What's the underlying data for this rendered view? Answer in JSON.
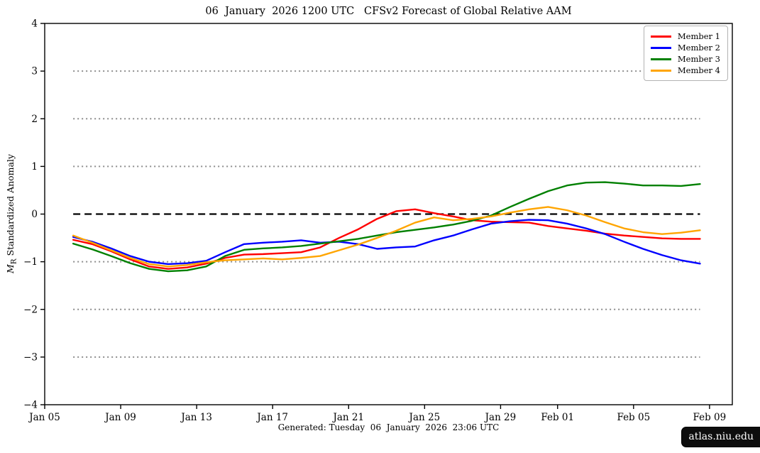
{
  "title": "06  January  2026 1200 UTC   CFSv2 Forecast of Global Relative AAM",
  "footer": "Generated: Tuesday  06  January  2026  23:06 UTC",
  "badge": "atlas.niu.edu",
  "ylabel": {
    "m": "M",
    "sub": "R",
    "rest": " Standardized Anomaly"
  },
  "chart_data": {
    "type": "line",
    "title": "06  January  2026 1200 UTC   CFSv2 Forecast of Global Relative AAM",
    "xlabel": "",
    "ylabel": "M_R Standardized Anomaly",
    "legend_position": "top-right",
    "grid": "horizontal-dotted",
    "zero_line": {
      "value": 0,
      "style": "dashed",
      "color": "#000000"
    },
    "y_axis": {
      "range": [
        -4,
        4
      ],
      "tick_values": [
        4,
        3,
        2,
        1,
        0,
        -1,
        -2,
        -3,
        -4
      ],
      "tick_labels": [
        "4",
        "3",
        "2",
        "1",
        "0",
        "−1",
        "−2",
        "−3",
        "−4"
      ],
      "gridlines": [
        3,
        2,
        1,
        -1,
        -2,
        -3
      ],
      "gridline_color": "#8c8c8c"
    },
    "x_axis": {
      "range_days": [
        5,
        41.2
      ],
      "tick_days": [
        5,
        9,
        13,
        17,
        21,
        25,
        29,
        32,
        36,
        40
      ],
      "tick_labels": [
        "Jan 05",
        "Jan 09",
        "Jan 13",
        "Jan 17",
        "Jan 21",
        "Jan 25",
        "Jan 29",
        "Feb 01",
        "Feb 05",
        "Feb 09"
      ]
    },
    "x_dates": [
      "Jan 06",
      "Jan 07",
      "Jan 08",
      "Jan 09",
      "Jan 10",
      "Jan 11",
      "Jan 12",
      "Jan 13",
      "Jan 14",
      "Jan 15",
      "Jan 16",
      "Jan 17",
      "Jan 18",
      "Jan 19",
      "Jan 20",
      "Jan 21",
      "Jan 22",
      "Jan 23",
      "Jan 24",
      "Jan 25",
      "Jan 26",
      "Jan 27",
      "Jan 28",
      "Jan 29",
      "Jan 30",
      "Jan 31",
      "Feb 01",
      "Feb 02",
      "Feb 03",
      "Feb 04",
      "Feb 05",
      "Feb 06",
      "Feb 07",
      "Feb 08"
    ],
    "x_days": [
      6.5,
      7.5,
      8.5,
      9.5,
      10.5,
      11.5,
      12.5,
      13.5,
      14.5,
      15.5,
      16.5,
      17.5,
      18.5,
      19.5,
      20.5,
      21.5,
      22.5,
      23.5,
      24.5,
      25.5,
      26.5,
      27.5,
      28.5,
      29.5,
      30.5,
      31.5,
      32.5,
      33.5,
      34.5,
      35.5,
      36.5,
      37.5,
      38.5,
      39.5
    ],
    "series": [
      {
        "name": "Member 1",
        "color": "#ff0000",
        "values": [
          -0.54,
          -0.63,
          -0.78,
          -0.95,
          -1.1,
          -1.15,
          -1.12,
          -1.04,
          -0.92,
          -0.85,
          -0.84,
          -0.82,
          -0.8,
          -0.7,
          -0.5,
          -0.32,
          -0.1,
          0.06,
          0.1,
          0.02,
          -0.05,
          -0.13,
          -0.16,
          -0.17,
          -0.18,
          -0.25,
          -0.3,
          -0.35,
          -0.41,
          -0.45,
          -0.48,
          -0.51,
          -0.52,
          -0.52
        ]
      },
      {
        "name": "Member 2",
        "color": "#0000ff",
        "values": [
          -0.48,
          -0.58,
          -0.72,
          -0.88,
          -1.0,
          -1.05,
          -1.03,
          -0.98,
          -0.8,
          -0.63,
          -0.6,
          -0.58,
          -0.55,
          -0.6,
          -0.58,
          -0.63,
          -0.73,
          -0.7,
          -0.68,
          -0.55,
          -0.45,
          -0.32,
          -0.2,
          -0.15,
          -0.12,
          -0.13,
          -0.2,
          -0.3,
          -0.42,
          -0.58,
          -0.73,
          -0.86,
          -0.97,
          -1.04
        ]
      },
      {
        "name": "Member 3",
        "color": "#008000",
        "values": [
          -0.62,
          -0.74,
          -0.88,
          -1.03,
          -1.15,
          -1.2,
          -1.18,
          -1.1,
          -0.88,
          -0.75,
          -0.72,
          -0.7,
          -0.67,
          -0.62,
          -0.57,
          -0.52,
          -0.45,
          -0.38,
          -0.33,
          -0.28,
          -0.22,
          -0.14,
          -0.03,
          0.15,
          0.32,
          0.48,
          0.6,
          0.66,
          0.67,
          0.64,
          0.6,
          0.6,
          0.59,
          0.63
        ]
      },
      {
        "name": "Member 4",
        "color": "#ffa500",
        "values": [
          -0.45,
          -0.6,
          -0.76,
          -0.92,
          -1.05,
          -1.1,
          -1.07,
          -1.01,
          -0.97,
          -0.95,
          -0.93,
          -0.95,
          -0.92,
          -0.88,
          -0.76,
          -0.64,
          -0.5,
          -0.35,
          -0.18,
          -0.07,
          -0.13,
          -0.1,
          -0.05,
          0.03,
          0.1,
          0.15,
          0.08,
          -0.03,
          -0.17,
          -0.3,
          -0.38,
          -0.42,
          -0.39,
          -0.34
        ]
      }
    ]
  }
}
